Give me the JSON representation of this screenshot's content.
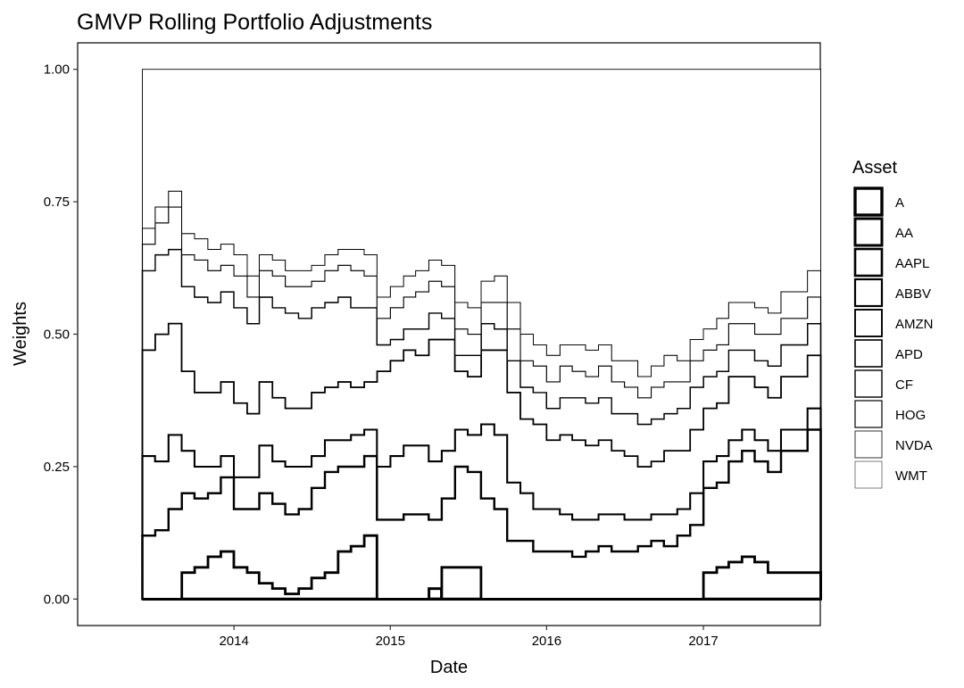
{
  "chart_data": {
    "type": "area",
    "title": "GMVP Rolling Portfolio Adjustments",
    "xlabel": "Date",
    "ylabel": "Weights",
    "x_ticks": [
      "2014",
      "2015",
      "2016",
      "2017"
    ],
    "y_ticks": [
      "0.00",
      "0.25",
      "0.50",
      "0.75",
      "1.00"
    ],
    "ylim": [
      -0.05,
      1.05
    ],
    "xlim": [
      "2013-01-01",
      "2017-10-01"
    ],
    "legend_title": "Asset",
    "legend_position": "right",
    "grid": false,
    "x": [
      "2013-06-01",
      "2013-07-01",
      "2013-08-01",
      "2013-09-01",
      "2013-10-01",
      "2013-11-01",
      "2013-12-01",
      "2014-01-01",
      "2014-02-01",
      "2014-03-01",
      "2014-04-01",
      "2014-05-01",
      "2014-06-01",
      "2014-07-01",
      "2014-08-01",
      "2014-09-01",
      "2014-10-01",
      "2014-11-01",
      "2014-12-01",
      "2015-01-01",
      "2015-02-01",
      "2015-03-01",
      "2015-04-01",
      "2015-05-01",
      "2015-06-01",
      "2015-07-01",
      "2015-08-01",
      "2015-09-01",
      "2015-10-01",
      "2015-11-01",
      "2015-12-01",
      "2016-01-01",
      "2016-02-01",
      "2016-03-01",
      "2016-04-01",
      "2016-05-01",
      "2016-06-01",
      "2016-07-01",
      "2016-08-01",
      "2016-09-01",
      "2016-10-01",
      "2016-11-01",
      "2016-12-01",
      "2017-01-01",
      "2017-02-01",
      "2017-03-01",
      "2017-04-01",
      "2017-05-01",
      "2017-06-01",
      "2017-07-01",
      "2017-08-01",
      "2017-09-01"
    ],
    "series": [
      {
        "name": "A",
        "values": [
          0.0,
          0.0,
          0.0,
          0.0,
          0.0,
          0.0,
          0.0,
          0.0,
          0.0,
          0.0,
          0.0,
          0.0,
          0.0,
          0.0,
          0.0,
          0.0,
          0.0,
          0.0,
          0.0,
          0.0,
          0.0,
          0.0,
          0.02,
          0.0,
          0.0,
          0.0,
          0.0,
          0.0,
          0.0,
          0.0,
          0.0,
          0.0,
          0.0,
          0.0,
          0.0,
          0.0,
          0.0,
          0.0,
          0.0,
          0.0,
          0.0,
          0.0,
          0.0,
          0.0,
          0.0,
          0.0,
          0.0,
          0.0,
          0.0,
          0.0,
          0.0,
          0.0
        ]
      },
      {
        "name": "AA",
        "values": [
          0.0,
          0.0,
          0.0,
          0.05,
          0.06,
          0.08,
          0.09,
          0.06,
          0.05,
          0.03,
          0.02,
          0.01,
          0.02,
          0.04,
          0.05,
          0.09,
          0.1,
          0.12,
          0.0,
          0.0,
          0.0,
          0.0,
          0.0,
          0.06,
          0.06,
          0.06,
          0.0,
          0.0,
          0.0,
          0.0,
          0.0,
          0.0,
          0.0,
          0.0,
          0.0,
          0.0,
          0.0,
          0.0,
          0.0,
          0.0,
          0.0,
          0.0,
          0.0,
          0.05,
          0.06,
          0.07,
          0.08,
          0.07,
          0.05,
          0.05,
          0.05,
          0.05
        ]
      },
      {
        "name": "AAPL",
        "values": [
          0.12,
          0.13,
          0.17,
          0.15,
          0.13,
          0.12,
          0.14,
          0.11,
          0.12,
          0.17,
          0.16,
          0.15,
          0.15,
          0.17,
          0.19,
          0.16,
          0.15,
          0.15,
          0.15,
          0.15,
          0.16,
          0.16,
          0.13,
          0.13,
          0.19,
          0.18,
          0.19,
          0.17,
          0.11,
          0.11,
          0.09,
          0.09,
          0.09,
          0.08,
          0.09,
          0.1,
          0.09,
          0.09,
          0.1,
          0.11,
          0.1,
          0.12,
          0.14,
          0.16,
          0.16,
          0.19,
          0.2,
          0.19,
          0.19,
          0.23,
          0.23,
          0.27
        ]
      },
      {
        "name": "ABBV",
        "values": [
          0.15,
          0.13,
          0.14,
          0.08,
          0.06,
          0.05,
          0.04,
          0.06,
          0.06,
          0.09,
          0.08,
          0.09,
          0.08,
          0.06,
          0.06,
          0.05,
          0.06,
          0.05,
          0.1,
          0.12,
          0.13,
          0.13,
          0.11,
          0.09,
          0.07,
          0.07,
          0.14,
          0.14,
          0.11,
          0.09,
          0.08,
          0.08,
          0.07,
          0.07,
          0.06,
          0.06,
          0.07,
          0.06,
          0.05,
          0.05,
          0.06,
          0.05,
          0.06,
          0.05,
          0.05,
          0.04,
          0.04,
          0.04,
          0.04,
          0.04,
          0.04,
          0.04
        ]
      },
      {
        "name": "AMZN",
        "values": [
          0.2,
          0.24,
          0.21,
          0.15,
          0.14,
          0.14,
          0.14,
          0.14,
          0.12,
          0.12,
          0.12,
          0.11,
          0.11,
          0.12,
          0.1,
          0.11,
          0.09,
          0.09,
          0.18,
          0.18,
          0.18,
          0.17,
          0.23,
          0.21,
          0.11,
          0.11,
          0.14,
          0.16,
          0.17,
          0.14,
          0.16,
          0.13,
          0.15,
          0.15,
          0.14,
          0.14,
          0.12,
          0.12,
          0.1,
          0.1,
          0.12,
          0.11,
          0.12,
          0.1,
          0.1,
          0.12,
          0.1,
          0.1,
          0.1,
          0.1,
          0.1,
          0.1
        ]
      },
      {
        "name": "APD",
        "values": [
          0.15,
          0.15,
          0.14,
          0.16,
          0.18,
          0.17,
          0.17,
          0.18,
          0.17,
          0.16,
          0.17,
          0.18,
          0.17,
          0.16,
          0.16,
          0.16,
          0.15,
          0.14,
          0.05,
          0.04,
          0.04,
          0.05,
          0.05,
          0.04,
          0.03,
          0.04,
          0.05,
          0.04,
          0.06,
          0.06,
          0.06,
          0.06,
          0.07,
          0.08,
          0.08,
          0.08,
          0.07,
          0.08,
          0.08,
          0.08,
          0.07,
          0.08,
          0.08,
          0.06,
          0.06,
          0.05,
          0.05,
          0.05,
          0.06,
          0.06,
          0.06,
          0.06
        ]
      },
      {
        "name": "CF",
        "values": [
          0.0,
          0.0,
          0.0,
          0.0,
          0.0,
          0.0,
          0.0,
          0.0,
          0.0,
          0.0,
          0.0,
          0.0,
          0.0,
          0.0,
          0.0,
          0.0,
          0.0,
          0.0,
          0.0,
          0.0,
          0.0,
          0.0,
          0.0,
          0.0,
          0.0,
          0.0,
          0.0,
          0.0,
          0.0,
          0.0,
          0.0,
          0.0,
          0.0,
          0.0,
          0.0,
          0.0,
          0.0,
          0.0,
          0.0,
          0.0,
          0.0,
          0.0,
          0.0,
          0.0,
          0.0,
          0.0,
          0.0,
          0.0,
          0.0,
          0.0,
          0.0,
          0.0
        ]
      },
      {
        "name": "HOG",
        "values": [
          0.05,
          0.06,
          0.08,
          0.06,
          0.07,
          0.06,
          0.05,
          0.06,
          0.05,
          0.05,
          0.06,
          0.05,
          0.06,
          0.05,
          0.06,
          0.06,
          0.07,
          0.06,
          0.05,
          0.06,
          0.06,
          0.07,
          0.06,
          0.06,
          0.05,
          0.04,
          0.04,
          0.05,
          0.06,
          0.05,
          0.05,
          0.05,
          0.06,
          0.05,
          0.05,
          0.06,
          0.06,
          0.05,
          0.05,
          0.06,
          0.06,
          0.05,
          0.05,
          0.05,
          0.05,
          0.05,
          0.05,
          0.05,
          0.06,
          0.05,
          0.05,
          0.05
        ]
      },
      {
        "name": "NVDA",
        "values": [
          0.03,
          0.03,
          0.03,
          0.04,
          0.04,
          0.04,
          0.04,
          0.04,
          0.04,
          0.03,
          0.03,
          0.03,
          0.03,
          0.03,
          0.03,
          0.03,
          0.04,
          0.04,
          0.04,
          0.04,
          0.04,
          0.04,
          0.04,
          0.04,
          0.05,
          0.05,
          0.04,
          0.05,
          0.05,
          0.05,
          0.04,
          0.05,
          0.04,
          0.05,
          0.05,
          0.04,
          0.04,
          0.05,
          0.04,
          0.04,
          0.05,
          0.04,
          0.04,
          0.04,
          0.05,
          0.04,
          0.04,
          0.05,
          0.04,
          0.05,
          0.05,
          0.05
        ]
      },
      {
        "name": "WMT",
        "values": [
          0.3,
          0.26,
          0.23,
          0.31,
          0.32,
          0.34,
          0.33,
          0.35,
          0.39,
          0.35,
          0.36,
          0.38,
          0.38,
          0.37,
          0.35,
          0.34,
          0.34,
          0.35,
          0.43,
          0.41,
          0.39,
          0.38,
          0.36,
          0.37,
          0.44,
          0.45,
          0.4,
          0.39,
          0.44,
          0.5,
          0.52,
          0.54,
          0.52,
          0.52,
          0.53,
          0.52,
          0.55,
          0.55,
          0.58,
          0.56,
          0.54,
          0.55,
          0.51,
          0.49,
          0.47,
          0.44,
          0.44,
          0.45,
          0.46,
          0.42,
          0.42,
          0.38
        ]
      }
    ]
  },
  "legend": {
    "title": "Asset",
    "items": [
      "A",
      "AA",
      "AAPL",
      "ABBV",
      "AMZN",
      "APD",
      "CF",
      "HOG",
      "NVDA",
      "WMT"
    ]
  },
  "colors": {
    "background": "#ffffff",
    "panel_border": "#000000",
    "series_stroke": "#000000",
    "series_fill": "#ffffff"
  }
}
